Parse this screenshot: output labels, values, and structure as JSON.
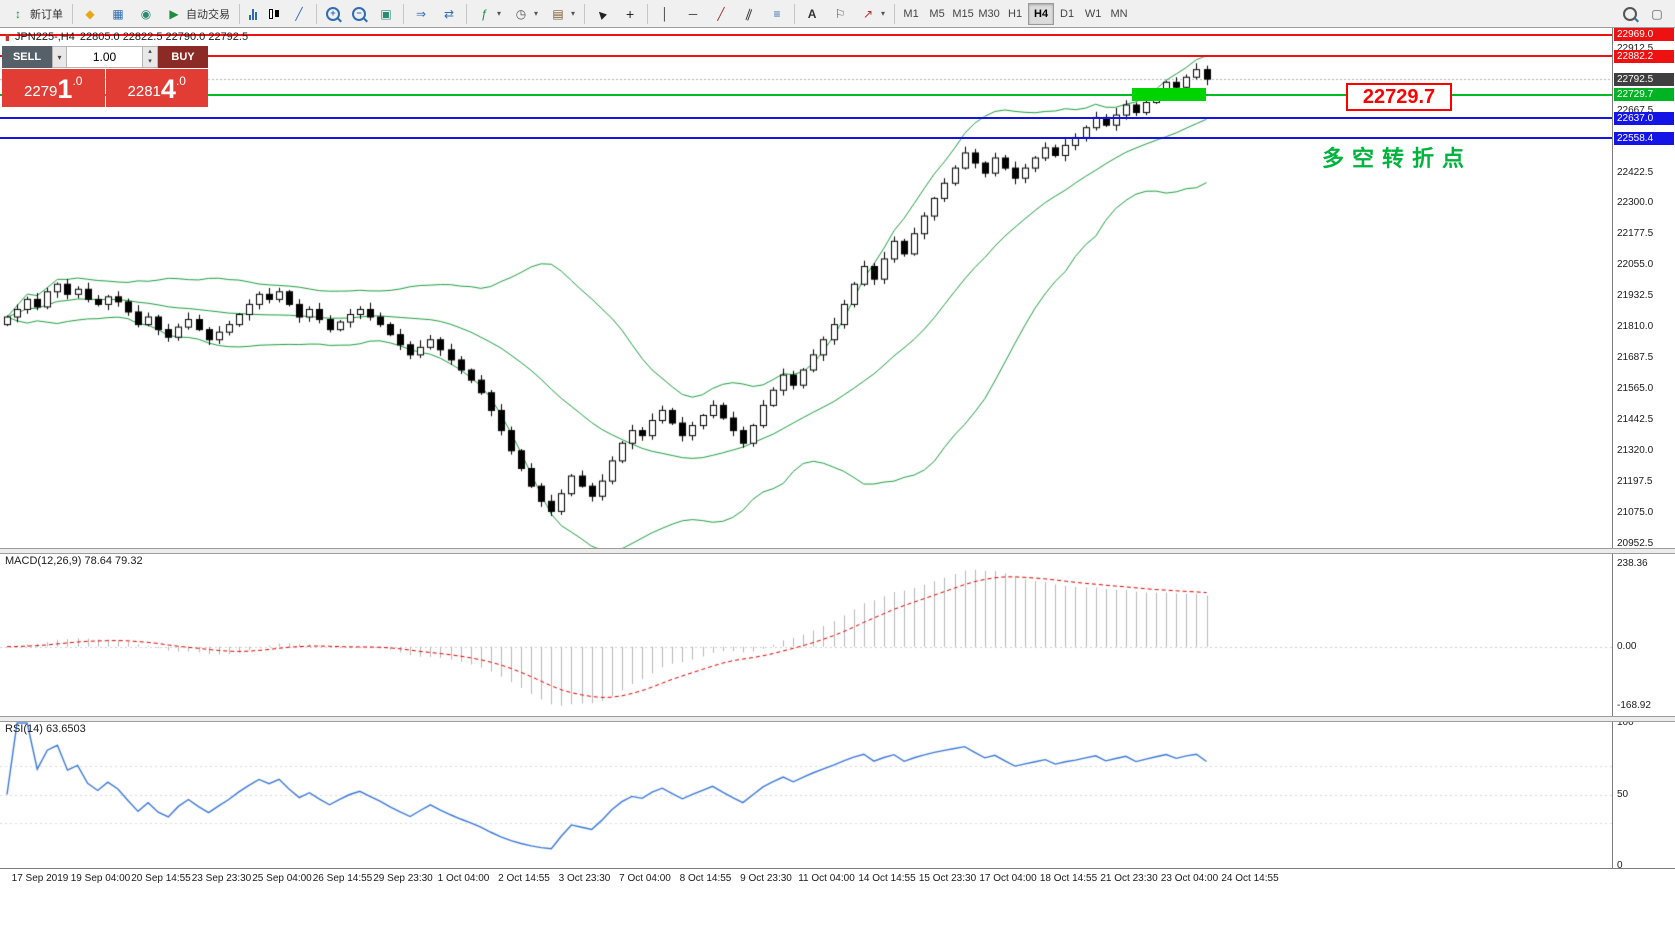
{
  "toolbar": {
    "new_order": "新订单",
    "autotrading": "自动交易",
    "text_tool": "A",
    "timeframes": [
      "M1",
      "M5",
      "M15",
      "M30",
      "H1",
      "H4",
      "D1",
      "W1",
      "MN"
    ],
    "active_timeframe": "H4"
  },
  "window": {
    "symbol_title": "JPN225-,H4",
    "ohlc": "22805.0 22822.5 22790.0 22792.5"
  },
  "trade_panel": {
    "sell_label": "SELL",
    "buy_label": "BUY",
    "volume": "1.00",
    "sell_price": "22791.0",
    "sell_pre": "2279",
    "sell_big": "1",
    "sell_dec": ".0",
    "buy_price": "22814.0",
    "buy_pre": "2281",
    "buy_big": "4",
    "buy_dec": ".0"
  },
  "annotations": {
    "price_callout": "22729.7",
    "turning_point_note": "多空转折点"
  },
  "panes": {
    "macd_label": "MACD(12,26,9) 78.64 79.32",
    "macd_axis": [
      "238.36",
      "0.00",
      "-168.92"
    ],
    "rsi_label": "RSI(14) 63.6503",
    "rsi_axis": [
      "100",
      "50",
      "0"
    ]
  },
  "price_axis": {
    "ticks": [
      22912.5,
      22790.0,
      22667.5,
      22545.0,
      22422.5,
      22300.0,
      22177.5,
      22055.0,
      21932.5,
      21810.0,
      21687.5,
      21565.0,
      21442.5,
      21320.0,
      21197.5,
      21075.0,
      20952.5
    ],
    "markers": [
      {
        "label": "22969.0",
        "price": 22969.0,
        "bg": "#ee1111"
      },
      {
        "label": "22882.2",
        "price": 22882.2,
        "bg": "#ee1111"
      },
      {
        "label": "22792.5",
        "price": 22792.5,
        "bg": "#3f3f3f"
      },
      {
        "label": "22729.7",
        "price": 22729.7,
        "bg": "#00b322"
      },
      {
        "label": "22637.0",
        "price": 22637.0,
        "bg": "#1414e6"
      },
      {
        "label": "22558.4",
        "price": 22558.4,
        "bg": "#1414e6"
      }
    ]
  },
  "chart_data": {
    "type": "candlestick",
    "symbol": "JPN225-",
    "period": "H4",
    "ohlc_current": {
      "open": 22805.0,
      "high": 22822.5,
      "low": 22790.0,
      "close": 22792.5
    },
    "bid": 22792.5,
    "y_range": [
      20935,
      22995
    ],
    "x_labels": [
      "17 Sep 2019",
      "19 Sep 04:00",
      "20 Sep 14:55",
      "23 Sep 23:30",
      "25 Sep 04:00",
      "26 Sep 14:55",
      "29 Sep 23:30",
      "1 Oct 04:00",
      "2 Oct 14:55",
      "3 Oct 23:30",
      "7 Oct 04:00",
      "8 Oct 14:55",
      "9 Oct 23:30",
      "11 Oct 04:00",
      "14 Oct 14:55",
      "15 Oct 23:30",
      "17 Oct 04:00",
      "18 Oct 14:55",
      "21 Oct 23:30",
      "23 Oct 04:00",
      "24 Oct 14:55"
    ],
    "closes": [
      21850,
      21880,
      21920,
      21890,
      21950,
      21980,
      21940,
      21960,
      21920,
      21900,
      21930,
      21910,
      21870,
      21820,
      21850,
      21800,
      21770,
      21810,
      21840,
      21800,
      21760,
      21790,
      21820,
      21860,
      21900,
      21940,
      21920,
      21950,
      21900,
      21850,
      21880,
      21840,
      21800,
      21830,
      21860,
      21880,
      21850,
      21820,
      21780,
      21740,
      21700,
      21730,
      21760,
      21720,
      21680,
      21640,
      21600,
      21550,
      21480,
      21400,
      21320,
      21250,
      21180,
      21120,
      21080,
      21150,
      21220,
      21180,
      21140,
      21200,
      21280,
      21350,
      21400,
      21380,
      21440,
      21480,
      21430,
      21380,
      21420,
      21460,
      21500,
      21450,
      21400,
      21350,
      21420,
      21500,
      21560,
      21620,
      21580,
      21640,
      21700,
      21760,
      21820,
      21900,
      21980,
      22050,
      22000,
      22080,
      22150,
      22100,
      22180,
      22250,
      22320,
      22380,
      22440,
      22500,
      22460,
      22420,
      22480,
      22440,
      22400,
      22440,
      22480,
      22520,
      22490,
      22530,
      22560,
      22600,
      22640,
      22610,
      22650,
      22690,
      22660,
      22700,
      22740,
      22780,
      22760,
      22800,
      22830,
      22792.5
    ],
    "overlays": {
      "bollinger": {
        "period": 20,
        "deviation": 2,
        "color": "#1f9d40"
      }
    },
    "indicators": [
      {
        "name": "MACD",
        "params": [
          12,
          26,
          9
        ],
        "values_shown": [
          78.64,
          79.32
        ],
        "colors": {
          "histogram": "#b8b8b8",
          "signal": "#e00000"
        }
      },
      {
        "name": "RSI",
        "params": [
          14
        ],
        "value_shown": 63.6503,
        "color": "#3c78d8"
      }
    ],
    "hlines": [
      {
        "price": 22969.0,
        "color": "#ee1111"
      },
      {
        "price": 22882.2,
        "color": "#ee1111"
      },
      {
        "price": 22729.7,
        "color": "#00bb22"
      },
      {
        "price": 22637.0,
        "color": "#1414e6"
      },
      {
        "price": 22558.4,
        "color": "#1414e6"
      }
    ],
    "highlight_zone": {
      "price": 22729.7,
      "color": "#00d400"
    }
  }
}
